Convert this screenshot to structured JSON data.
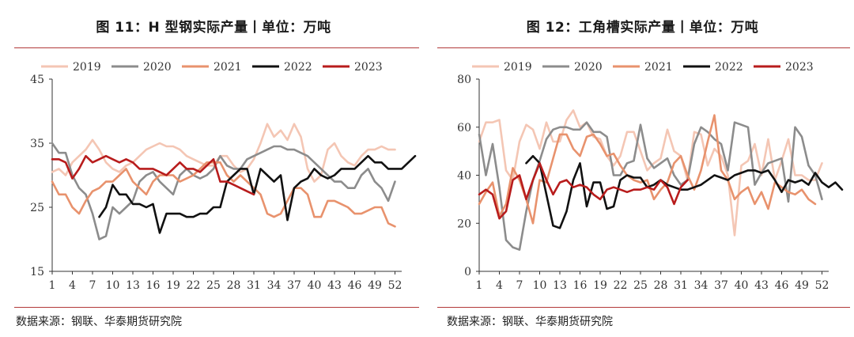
{
  "chart_data": [
    {
      "type": "line",
      "title": "图 11：H 型钢实际产量丨单位：万吨",
      "source": "数据来源：钢联、华泰期货研究院",
      "x_ticks": [
        1,
        4,
        7,
        10,
        13,
        16,
        19,
        22,
        25,
        28,
        31,
        34,
        37,
        40,
        43,
        46,
        49,
        52
      ],
      "ylim": [
        15,
        45
      ],
      "y_ticks": [
        15,
        25,
        35,
        45
      ],
      "legend_position": "top",
      "series": [
        {
          "name": "2019",
          "color": "#f4c6b4",
          "values": [
            30.5,
            31,
            30,
            32,
            33,
            34,
            35.5,
            34,
            32,
            31,
            30.5,
            31.5,
            32,
            33,
            34,
            34.5,
            35,
            34.5,
            34.5,
            34,
            33,
            32.5,
            32,
            31.5,
            31.5,
            33,
            33,
            31.5,
            30.5,
            31,
            32.5,
            35,
            38,
            36,
            37,
            35.5,
            38,
            36,
            31,
            29,
            30,
            34,
            35,
            33,
            32,
            31.5,
            33,
            34,
            34,
            34.5,
            34,
            34
          ]
        },
        {
          "name": "2020",
          "color": "#8c8c8c",
          "values": [
            35,
            33.5,
            33.5,
            30,
            28,
            27,
            24,
            20,
            20.5,
            25,
            24,
            25,
            26,
            29,
            30,
            30.5,
            29,
            28,
            27,
            30,
            31,
            30,
            29.5,
            30,
            31,
            33,
            31.5,
            31,
            31,
            32.5,
            33,
            33.5,
            34,
            34.5,
            34.5,
            34,
            34,
            33.5,
            33,
            32,
            31,
            30,
            29,
            29,
            28,
            28,
            30,
            31,
            29,
            28,
            26,
            29
          ]
        },
        {
          "name": "2021",
          "color": "#e8926d",
          "values": [
            29,
            27,
            27,
            25,
            24,
            26,
            27.5,
            28,
            29,
            29,
            30,
            31,
            29,
            28,
            27,
            29,
            30,
            30,
            30,
            29,
            29.5,
            30,
            31,
            32,
            32,
            32,
            30,
            29,
            30,
            29,
            28,
            27,
            24,
            23.5,
            24,
            26,
            28,
            28,
            27,
            23.5,
            23.5,
            26,
            26,
            25.5,
            25,
            24,
            24,
            24.5,
            25,
            25,
            22.5,
            22
          ]
        },
        {
          "name": "2022",
          "color": "#111111",
          "values": [
            null,
            null,
            null,
            null,
            null,
            null,
            null,
            23.5,
            25,
            28.5,
            27,
            27,
            25.5,
            25.5,
            25,
            25.5,
            21,
            24,
            24,
            24,
            23.5,
            23.5,
            24,
            24,
            25,
            25,
            29,
            30,
            31,
            31,
            27,
            31,
            30,
            29,
            30,
            23,
            28,
            29,
            29.5,
            31,
            30,
            29.5,
            30,
            31,
            31,
            31,
            32,
            33,
            32,
            32,
            31,
            31,
            31,
            32,
            33
          ]
        },
        {
          "name": "2023",
          "color": "#b81c1c",
          "values": [
            32.5,
            32.5,
            32,
            29.5,
            31,
            33,
            32,
            32.5,
            33,
            32.5,
            32,
            32.5,
            32,
            31,
            31,
            31,
            30.5,
            30,
            31,
            32,
            31,
            31,
            30.5,
            31.5,
            32.5,
            29,
            29,
            28.5,
            28,
            27.5,
            27
          ]
        }
      ]
    },
    {
      "type": "line",
      "title": "图 12：工角槽实际产量丨单位：万吨",
      "source": "数据来源：钢联、华泰期货研究院",
      "x_ticks": [
        1,
        4,
        7,
        10,
        13,
        16,
        19,
        22,
        25,
        28,
        31,
        34,
        37,
        40,
        43,
        46,
        49,
        52
      ],
      "ylim": [
        0,
        80
      ],
      "y_ticks": [
        0,
        20,
        40,
        60,
        80
      ],
      "legend_position": "top",
      "series": [
        {
          "name": "2019",
          "color": "#f4c6b4",
          "values": [
            54,
            62,
            62,
            63,
            42,
            38,
            54,
            61,
            59,
            51,
            62,
            54,
            54,
            63,
            67,
            60,
            62,
            56,
            55,
            48,
            44,
            48,
            58,
            58,
            50,
            42,
            45,
            47,
            59,
            50,
            48,
            38,
            58,
            57,
            44,
            51,
            48,
            40,
            15,
            44,
            46,
            53,
            40,
            55,
            38,
            46,
            55,
            40,
            40,
            38,
            38,
            45
          ]
        },
        {
          "name": "2020",
          "color": "#8c8c8c",
          "values": [
            57,
            40,
            53,
            35,
            13,
            10,
            9,
            25,
            38,
            46,
            55,
            59,
            60,
            60,
            59,
            59,
            62,
            58,
            58,
            56,
            40,
            40,
            45,
            46,
            61,
            47,
            43,
            45,
            47,
            40,
            36,
            38,
            53,
            60,
            58,
            55,
            53,
            42,
            62,
            61,
            60,
            36,
            41,
            45,
            46,
            47,
            29,
            60,
            56,
            44,
            40,
            30
          ]
        },
        {
          "name": "2021",
          "color": "#e8926d",
          "values": [
            28,
            33,
            37,
            23,
            28,
            43,
            38,
            30,
            20,
            38,
            37,
            47,
            57,
            57,
            51,
            48,
            56,
            57,
            53,
            48,
            49,
            44,
            40,
            38,
            37,
            38,
            30,
            34,
            37,
            45,
            48,
            40,
            34,
            42,
            54,
            65,
            42,
            38,
            30,
            33,
            35,
            28,
            33,
            26,
            37,
            35,
            33,
            32,
            34,
            30,
            28
          ]
        },
        {
          "name": "2022",
          "color": "#111111",
          "values": [
            null,
            null,
            null,
            null,
            null,
            null,
            null,
            45,
            48,
            45,
            32,
            19,
            18,
            25,
            38,
            45,
            27,
            37,
            37,
            26,
            27,
            38,
            40,
            39,
            39,
            35,
            36,
            38,
            36,
            35,
            34,
            34,
            35,
            36,
            38,
            40,
            39,
            38,
            40,
            41,
            42,
            42,
            41,
            42,
            38,
            33,
            38,
            37,
            38,
            36,
            41,
            37,
            35,
            37,
            34
          ]
        },
        {
          "name": "2023",
          "color": "#b81c1c",
          "values": [
            32,
            34,
            32,
            22,
            25,
            38,
            40,
            30,
            38,
            45,
            38,
            32,
            37,
            38,
            35,
            36,
            35,
            32,
            30,
            34,
            35,
            34,
            33,
            34,
            34,
            35,
            34,
            38,
            35,
            28,
            35,
            38
          ]
        }
      ]
    }
  ]
}
